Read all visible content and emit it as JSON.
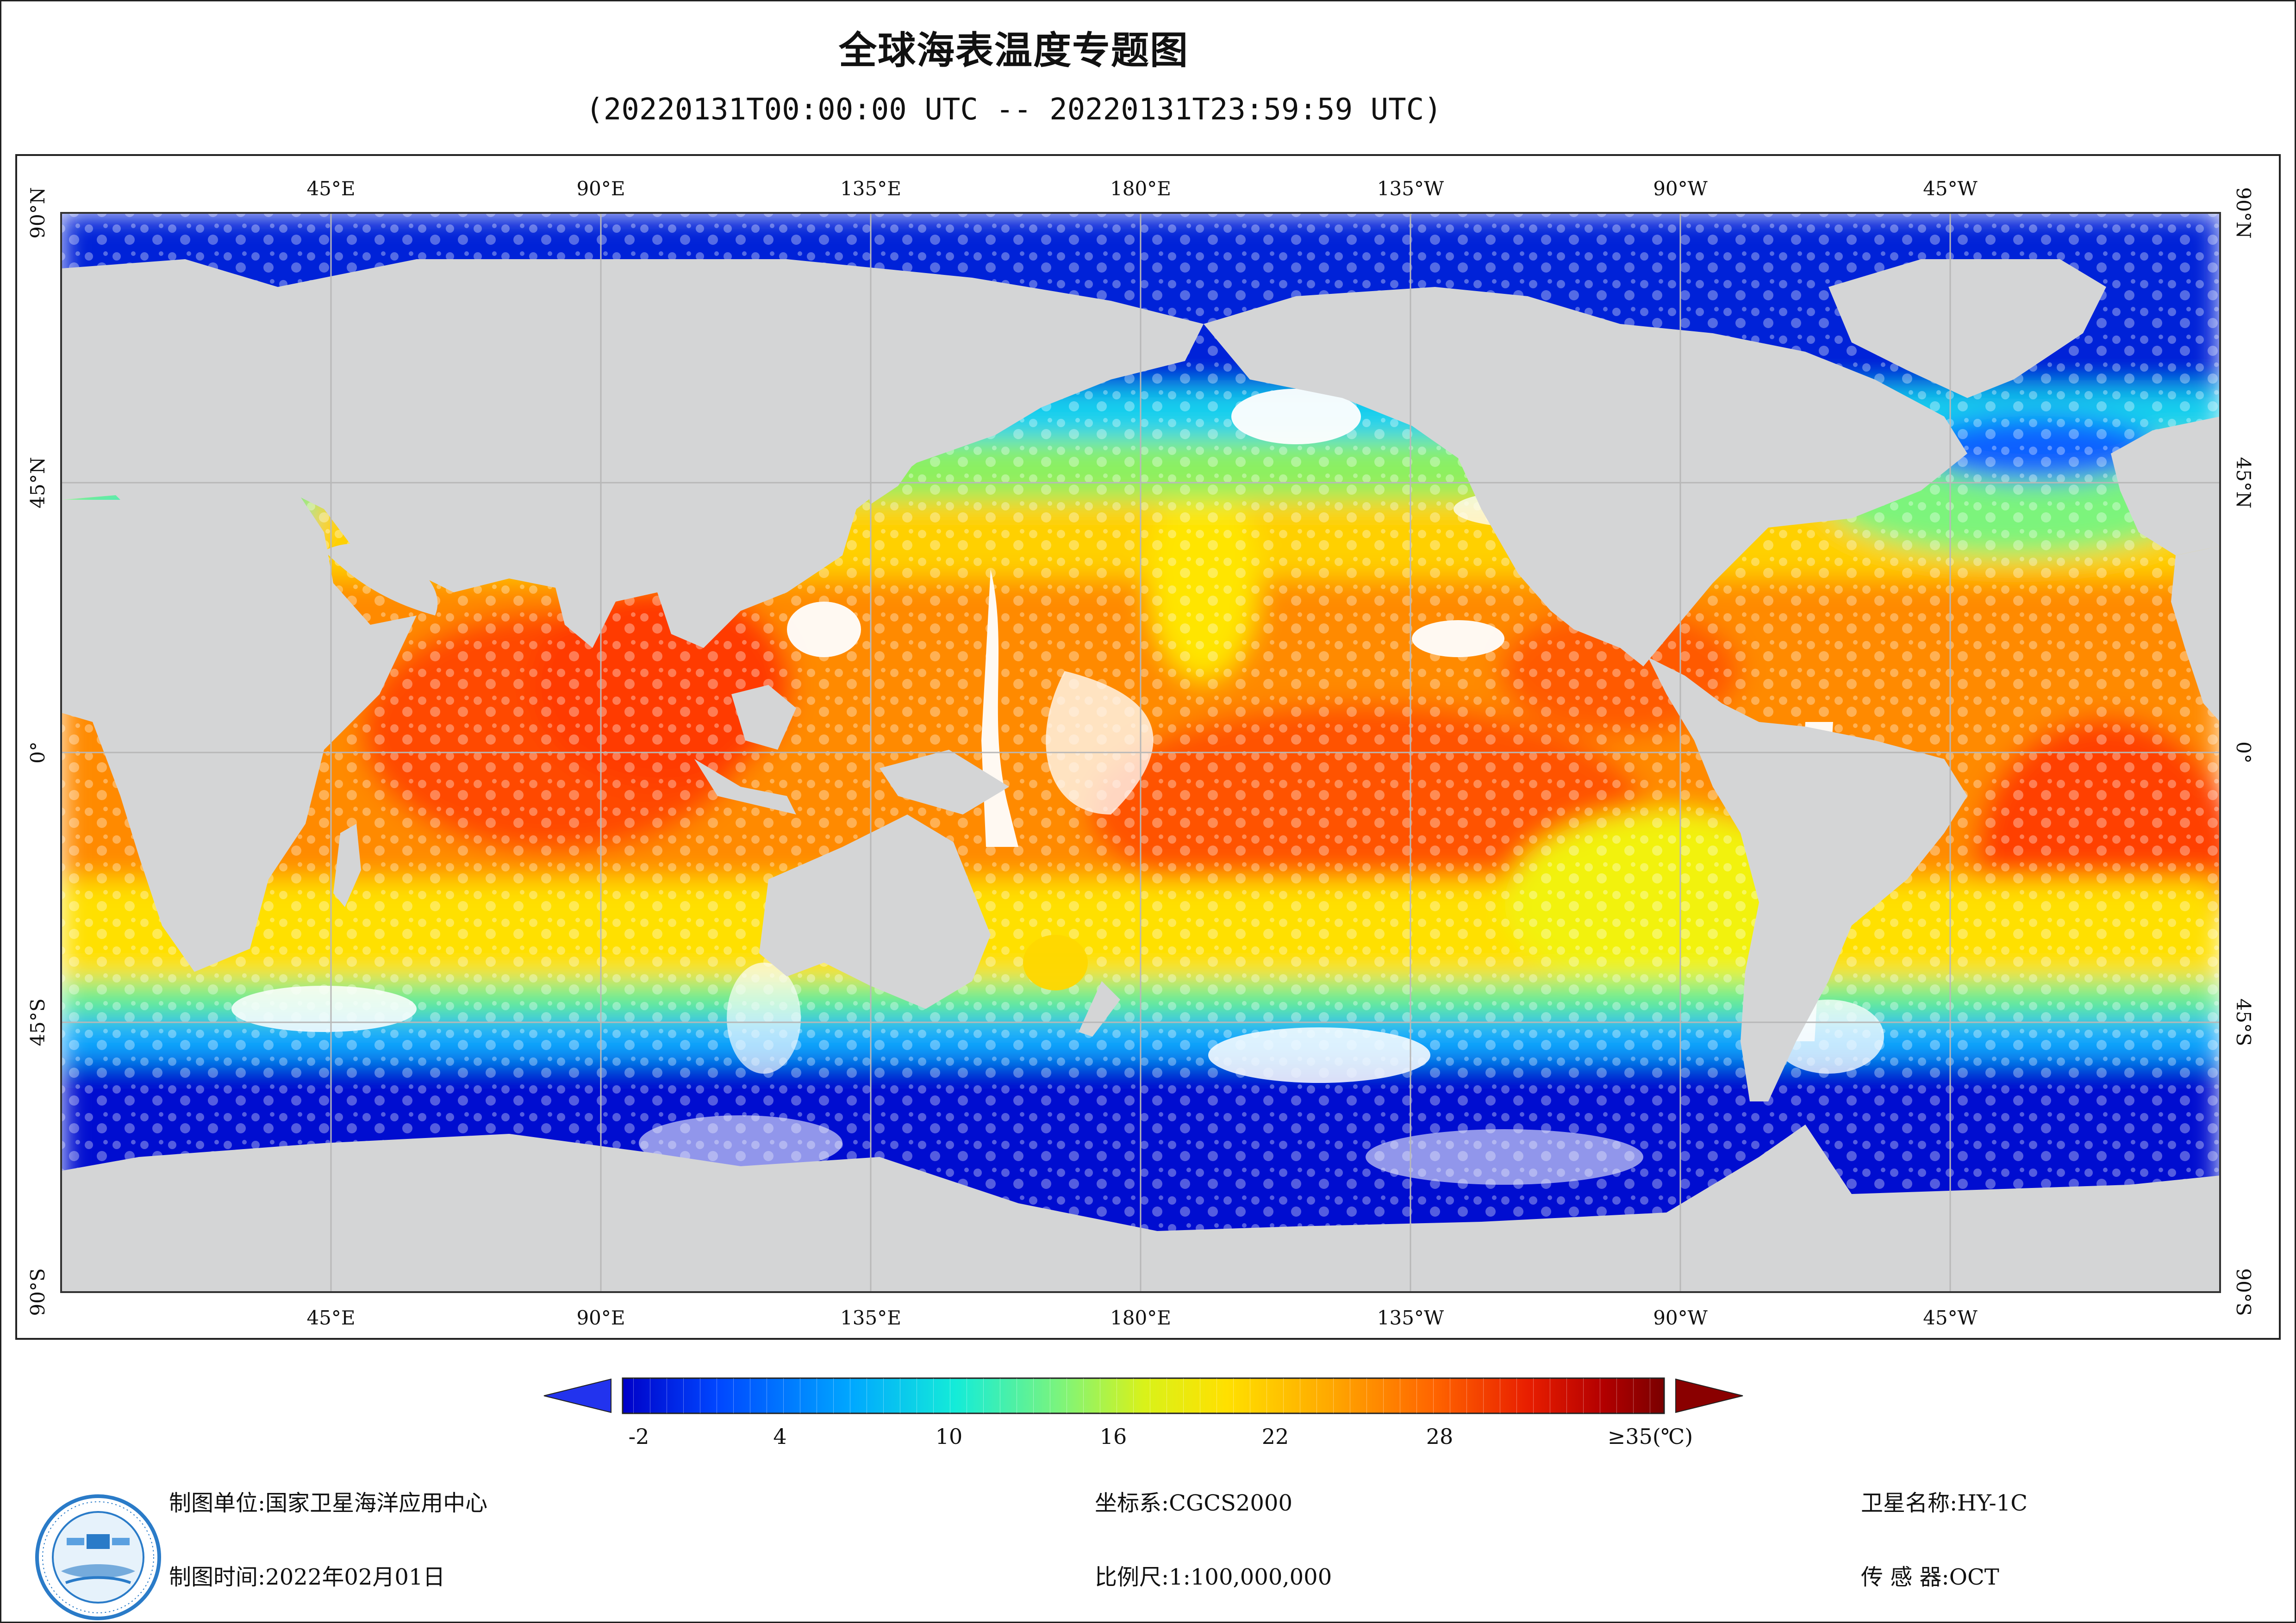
{
  "title": "全球海表温度专题图",
  "subtitle": "(20220131T00:00:00 UTC -- 20220131T23:59:59 UTC)",
  "graticule": {
    "top_lon_labels": [
      "45°E",
      "90°E",
      "135°E",
      "180°E",
      "135°W",
      "90°W",
      "45°W"
    ],
    "bottom_lon_labels": [
      "45°E",
      "90°E",
      "135°E",
      "180°E",
      "135°W",
      "90°W",
      "45°W"
    ],
    "left_lat_labels": [
      "90°N",
      "45°N",
      "0°",
      "45°S",
      "90°S"
    ],
    "right_lat_labels": [
      "90°N",
      "45°N",
      "0°",
      "45°S",
      "90°S"
    ]
  },
  "legend": {
    "unit": "(℃)",
    "tick_labels": [
      "-2",
      "4",
      "10",
      "16",
      "22",
      "28",
      "≥35(℃)"
    ],
    "min": -2,
    "max": 35,
    "colors": [
      "#0000c8",
      "#0046ff",
      "#00a8ff",
      "#14ecd8",
      "#7cf47c",
      "#d8f21a",
      "#ffe000",
      "#ffa800",
      "#ff6400",
      "#e81e00",
      "#b40000",
      "#7a0000"
    ]
  },
  "footer": {
    "unit_label": "制图单位:国家卫星海洋应用中心",
    "time_label": "制图时间:2022年02月01日",
    "crs_label": "坐标系:CGCS2000",
    "scale_label": "比例尺:1:100,000,000",
    "satellite_label": "卫星名称:HY-1C",
    "sensor_label": "传 感 器:OCT"
  },
  "colors": {
    "land": "#d4d5d6",
    "nodata": "#ffffff",
    "grid": "#b8b8b8"
  }
}
